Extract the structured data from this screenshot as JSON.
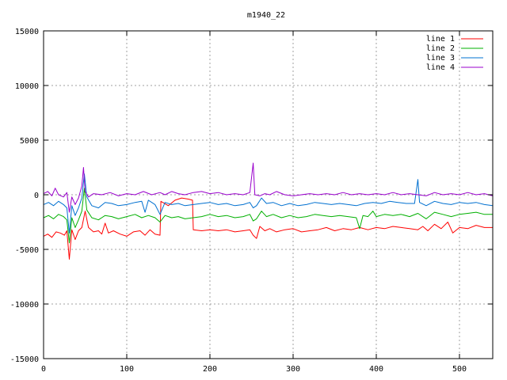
{
  "chart_data": {
    "type": "line",
    "title": "m1940_22",
    "xlabel": "",
    "ylabel": "",
    "xlim": [
      0,
      540
    ],
    "ylim": [
      -15000,
      15000
    ],
    "xticks": [
      0,
      100,
      200,
      300,
      400,
      500
    ],
    "yticks": [
      -15000,
      -10000,
      -5000,
      0,
      5000,
      10000,
      15000
    ],
    "grid": true,
    "legend_position": "top-right",
    "series": [
      {
        "name": "line 1",
        "color": "#ff0000",
        "points": [
          [
            0,
            -3800
          ],
          [
            5,
            -3600
          ],
          [
            10,
            -3900
          ],
          [
            15,
            -3400
          ],
          [
            20,
            -3500
          ],
          [
            25,
            -3700
          ],
          [
            28,
            -3300
          ],
          [
            31,
            -5900
          ],
          [
            34,
            -3200
          ],
          [
            38,
            -4100
          ],
          [
            42,
            -3300
          ],
          [
            46,
            -3000
          ],
          [
            50,
            -1500
          ],
          [
            54,
            -3000
          ],
          [
            60,
            -3400
          ],
          [
            66,
            -3300
          ],
          [
            70,
            -3600
          ],
          [
            74,
            -2600
          ],
          [
            78,
            -3500
          ],
          [
            84,
            -3300
          ],
          [
            92,
            -3600
          ],
          [
            100,
            -3800
          ],
          [
            108,
            -3400
          ],
          [
            116,
            -3300
          ],
          [
            122,
            -3700
          ],
          [
            128,
            -3200
          ],
          [
            134,
            -3600
          ],
          [
            140,
            -3700
          ],
          [
            141,
            -600
          ],
          [
            150,
            -1000
          ],
          [
            158,
            -500
          ],
          [
            166,
            -300
          ],
          [
            174,
            -400
          ],
          [
            179,
            -500
          ],
          [
            180,
            -3200
          ],
          [
            190,
            -3300
          ],
          [
            200,
            -3200
          ],
          [
            210,
            -3300
          ],
          [
            220,
            -3200
          ],
          [
            230,
            -3400
          ],
          [
            240,
            -3300
          ],
          [
            248,
            -3200
          ],
          [
            252,
            -3700
          ],
          [
            256,
            -4000
          ],
          [
            260,
            -2900
          ],
          [
            266,
            -3300
          ],
          [
            272,
            -3100
          ],
          [
            280,
            -3400
          ],
          [
            290,
            -3200
          ],
          [
            300,
            -3100
          ],
          [
            310,
            -3400
          ],
          [
            320,
            -3300
          ],
          [
            330,
            -3200
          ],
          [
            340,
            -3000
          ],
          [
            350,
            -3300
          ],
          [
            360,
            -3100
          ],
          [
            370,
            -3200
          ],
          [
            380,
            -3000
          ],
          [
            390,
            -3200
          ],
          [
            400,
            -3000
          ],
          [
            410,
            -3100
          ],
          [
            420,
            -2900
          ],
          [
            430,
            -3000
          ],
          [
            440,
            -3100
          ],
          [
            450,
            -3200
          ],
          [
            456,
            -2900
          ],
          [
            462,
            -3300
          ],
          [
            470,
            -2700
          ],
          [
            478,
            -3100
          ],
          [
            486,
            -2500
          ],
          [
            492,
            -3500
          ],
          [
            500,
            -3000
          ],
          [
            510,
            -3100
          ],
          [
            520,
            -2800
          ],
          [
            530,
            -3000
          ],
          [
            540,
            -3000
          ]
        ]
      },
      {
        "name": "line 2",
        "color": "#00b000",
        "points": [
          [
            0,
            -2100
          ],
          [
            6,
            -1900
          ],
          [
            12,
            -2200
          ],
          [
            18,
            -1800
          ],
          [
            24,
            -2000
          ],
          [
            28,
            -2300
          ],
          [
            31,
            -4400
          ],
          [
            34,
            -2100
          ],
          [
            38,
            -3000
          ],
          [
            42,
            -2300
          ],
          [
            46,
            -1500
          ],
          [
            49,
            600
          ],
          [
            52,
            -1400
          ],
          [
            58,
            -2100
          ],
          [
            66,
            -2300
          ],
          [
            74,
            -1900
          ],
          [
            82,
            -2000
          ],
          [
            90,
            -2200
          ],
          [
            100,
            -2000
          ],
          [
            110,
            -1800
          ],
          [
            118,
            -2100
          ],
          [
            126,
            -1900
          ],
          [
            134,
            -2100
          ],
          [
            140,
            -2500
          ],
          [
            146,
            -1900
          ],
          [
            154,
            -2100
          ],
          [
            162,
            -2000
          ],
          [
            170,
            -2200
          ],
          [
            180,
            -2100
          ],
          [
            190,
            -2000
          ],
          [
            200,
            -1800
          ],
          [
            210,
            -2000
          ],
          [
            220,
            -1900
          ],
          [
            230,
            -2100
          ],
          [
            240,
            -2000
          ],
          [
            248,
            -1800
          ],
          [
            252,
            -2400
          ],
          [
            256,
            -2200
          ],
          [
            262,
            -1500
          ],
          [
            268,
            -2000
          ],
          [
            276,
            -1800
          ],
          [
            286,
            -2100
          ],
          [
            296,
            -1900
          ],
          [
            306,
            -2100
          ],
          [
            316,
            -2000
          ],
          [
            326,
            -1800
          ],
          [
            336,
            -1900
          ],
          [
            346,
            -2000
          ],
          [
            356,
            -1900
          ],
          [
            366,
            -2000
          ],
          [
            376,
            -2100
          ],
          [
            380,
            -3100
          ],
          [
            384,
            -1900
          ],
          [
            390,
            -2000
          ],
          [
            396,
            -1500
          ],
          [
            400,
            -2000
          ],
          [
            410,
            -1800
          ],
          [
            420,
            -1900
          ],
          [
            430,
            -1800
          ],
          [
            440,
            -2000
          ],
          [
            450,
            -1700
          ],
          [
            460,
            -2200
          ],
          [
            470,
            -1600
          ],
          [
            480,
            -1800
          ],
          [
            490,
            -2000
          ],
          [
            500,
            -1800
          ],
          [
            510,
            -1700
          ],
          [
            520,
            -1600
          ],
          [
            530,
            -1800
          ],
          [
            540,
            -1800
          ]
        ]
      },
      {
        "name": "line 3",
        "color": "#0070d0",
        "points": [
          [
            0,
            -900
          ],
          [
            6,
            -700
          ],
          [
            12,
            -1000
          ],
          [
            18,
            -600
          ],
          [
            24,
            -900
          ],
          [
            28,
            -1200
          ],
          [
            31,
            -3500
          ],
          [
            34,
            -1000
          ],
          [
            38,
            -1900
          ],
          [
            42,
            -1200
          ],
          [
            46,
            -300
          ],
          [
            49,
            1900
          ],
          [
            52,
            -200
          ],
          [
            58,
            -1000
          ],
          [
            66,
            -1200
          ],
          [
            74,
            -700
          ],
          [
            82,
            -800
          ],
          [
            90,
            -1000
          ],
          [
            100,
            -900
          ],
          [
            110,
            -700
          ],
          [
            118,
            -600
          ],
          [
            122,
            -1600
          ],
          [
            126,
            -500
          ],
          [
            134,
            -900
          ],
          [
            140,
            -1800
          ],
          [
            146,
            -700
          ],
          [
            154,
            -900
          ],
          [
            162,
            -800
          ],
          [
            170,
            -1000
          ],
          [
            180,
            -900
          ],
          [
            190,
            -800
          ],
          [
            200,
            -700
          ],
          [
            210,
            -900
          ],
          [
            220,
            -800
          ],
          [
            230,
            -1000
          ],
          [
            240,
            -900
          ],
          [
            248,
            -700
          ],
          [
            252,
            -1200
          ],
          [
            256,
            -1000
          ],
          [
            262,
            -300
          ],
          [
            268,
            -800
          ],
          [
            276,
            -700
          ],
          [
            286,
            -1000
          ],
          [
            296,
            -800
          ],
          [
            306,
            -1000
          ],
          [
            316,
            -900
          ],
          [
            326,
            -700
          ],
          [
            336,
            -800
          ],
          [
            346,
            -900
          ],
          [
            356,
            -800
          ],
          [
            366,
            -900
          ],
          [
            376,
            -1000
          ],
          [
            386,
            -800
          ],
          [
            396,
            -700
          ],
          [
            406,
            -800
          ],
          [
            416,
            -600
          ],
          [
            426,
            -700
          ],
          [
            436,
            -800
          ],
          [
            446,
            -800
          ],
          [
            450,
            1400
          ],
          [
            452,
            -700
          ],
          [
            460,
            -1000
          ],
          [
            470,
            -600
          ],
          [
            480,
            -800
          ],
          [
            490,
            -900
          ],
          [
            500,
            -700
          ],
          [
            510,
            -800
          ],
          [
            520,
            -700
          ],
          [
            530,
            -900
          ],
          [
            540,
            -1000
          ]
        ]
      },
      {
        "name": "line 4",
        "color": "#9900cc",
        "points": [
          [
            0,
            100
          ],
          [
            5,
            300
          ],
          [
            10,
            -100
          ],
          [
            14,
            600
          ],
          [
            18,
            0
          ],
          [
            24,
            -200
          ],
          [
            28,
            200
          ],
          [
            31,
            -1600
          ],
          [
            34,
            -200
          ],
          [
            38,
            -900
          ],
          [
            42,
            -300
          ],
          [
            46,
            800
          ],
          [
            48,
            2500
          ],
          [
            50,
            300
          ],
          [
            54,
            -200
          ],
          [
            60,
            100
          ],
          [
            70,
            0
          ],
          [
            80,
            200
          ],
          [
            90,
            -100
          ],
          [
            100,
            100
          ],
          [
            110,
            0
          ],
          [
            120,
            300
          ],
          [
            130,
            0
          ],
          [
            140,
            200
          ],
          [
            146,
            0
          ],
          [
            154,
            300
          ],
          [
            162,
            100
          ],
          [
            170,
            0
          ],
          [
            180,
            200
          ],
          [
            190,
            300
          ],
          [
            200,
            100
          ],
          [
            210,
            200
          ],
          [
            220,
            0
          ],
          [
            230,
            100
          ],
          [
            240,
            0
          ],
          [
            248,
            200
          ],
          [
            252,
            2900
          ],
          [
            254,
            0
          ],
          [
            260,
            -100
          ],
          [
            266,
            100
          ],
          [
            272,
            0
          ],
          [
            280,
            300
          ],
          [
            290,
            0
          ],
          [
            300,
            -100
          ],
          [
            310,
            0
          ],
          [
            320,
            100
          ],
          [
            330,
            0
          ],
          [
            340,
            100
          ],
          [
            350,
            0
          ],
          [
            360,
            200
          ],
          [
            370,
            0
          ],
          [
            380,
            100
          ],
          [
            390,
            0
          ],
          [
            400,
            100
          ],
          [
            410,
            0
          ],
          [
            420,
            200
          ],
          [
            430,
            0
          ],
          [
            440,
            100
          ],
          [
            450,
            0
          ],
          [
            460,
            -100
          ],
          [
            470,
            200
          ],
          [
            480,
            0
          ],
          [
            490,
            100
          ],
          [
            500,
            0
          ],
          [
            510,
            200
          ],
          [
            520,
            0
          ],
          [
            530,
            100
          ],
          [
            540,
            -100
          ]
        ]
      }
    ]
  }
}
